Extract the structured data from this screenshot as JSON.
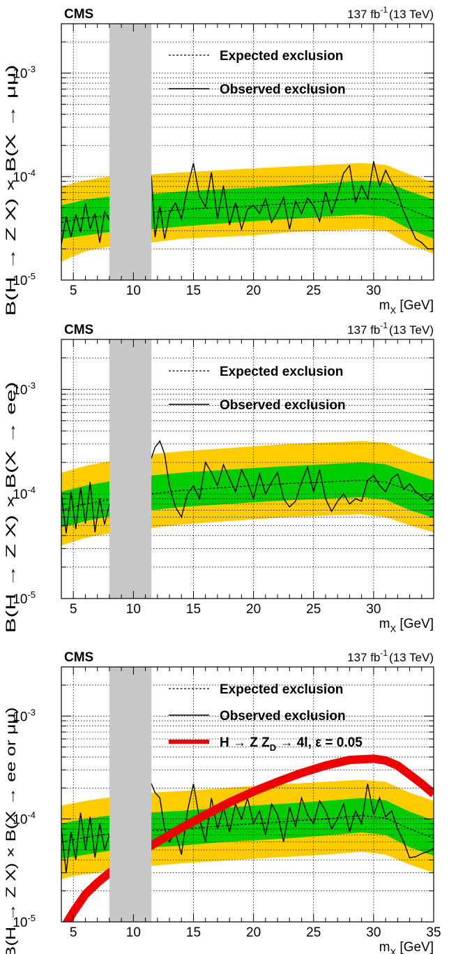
{
  "chart_data": [
    {
      "type": "line",
      "experiment": "CMS",
      "lumi": {
        "value": "137 fb",
        "exp": "-1",
        "energy": "(13 TeV)"
      },
      "xlabel": {
        "main": "m",
        "sub": "X",
        "unit": " [GeV]"
      },
      "ylabel": "B(H → Z X) × B(X → μμ)",
      "xlim": [
        4,
        35
      ],
      "ylim": [
        1e-05,
        0.003
      ],
      "log_y": true,
      "grid": true,
      "x_ticks": [
        5,
        10,
        15,
        20,
        25,
        30
      ],
      "y_ticks": [
        {
          "value": 1e-05,
          "exp": "-5"
        },
        {
          "value": 0.0001,
          "exp": "-4"
        },
        {
          "value": 0.001,
          "exp": "-3"
        }
      ],
      "excluded_region": [
        8,
        11.5
      ],
      "legend": {
        "expected": "Expected exclusion",
        "observed": "Observed exclusion"
      },
      "expected": {
        "x": [
          4,
          5,
          6,
          7,
          8,
          11.5,
          14,
          17,
          20,
          23,
          26,
          29,
          31,
          33,
          35
        ],
        "median": [
          3.6e-05,
          3.8e-05,
          4e-05,
          4.1e-05,
          4.2e-05,
          4.5e-05,
          4.8e-05,
          5e-05,
          5.2e-05,
          5.5e-05,
          5.8e-05,
          6.2e-05,
          6e-05,
          4.8e-05,
          3.9e-05
        ],
        "band1_low": [
          2.5e-05,
          2.6e-05,
          2.7e-05,
          2.8e-05,
          2.9e-05,
          3.1e-05,
          3.3e-05,
          3.5e-05,
          3.7e-05,
          3.9e-05,
          4.1e-05,
          4.3e-05,
          4.1e-05,
          3.1e-05,
          2.5e-05
        ],
        "band1_high": [
          5.3e-05,
          5.6e-05,
          6e-05,
          6.2e-05,
          6.4e-05,
          6.8e-05,
          7.2e-05,
          7.5e-05,
          7.8e-05,
          8.2e-05,
          8.6e-05,
          9.1e-05,
          8.8e-05,
          7.2e-05,
          6e-05
        ],
        "band2_low": [
          1.5e-05,
          1.7e-05,
          1.9e-05,
          2e-05,
          2.1e-05,
          2.3e-05,
          2.5e-05,
          2.6e-05,
          2.7e-05,
          2.9e-05,
          3e-05,
          3.1e-05,
          3e-05,
          2.2e-05,
          1.8e-05
        ],
        "band2_high": [
          8e-05,
          8.6e-05,
          9.2e-05,
          9.6e-05,
          0.0001,
          0.000105,
          0.00011,
          0.000115,
          0.00012,
          0.000125,
          0.00013,
          0.000135,
          0.00013,
          0.000105,
          8.8e-05
        ]
      },
      "observed": {
        "x": [
          4.0,
          4.4,
          4.8,
          5.2,
          5.6,
          6.0,
          6.4,
          6.8,
          7.2,
          7.6,
          8.0,
          11.5,
          11.8,
          12.2,
          12.6,
          13.0,
          13.5,
          14.0,
          14.5,
          15.0,
          15.5,
          16.0,
          16.5,
          17.0,
          17.5,
          18.0,
          18.5,
          19.0,
          19.5,
          20.0,
          20.5,
          21.0,
          21.5,
          22.0,
          22.5,
          23.0,
          23.5,
          24.0,
          24.5,
          25.0,
          25.5,
          26.0,
          26.5,
          27.0,
          27.5,
          28.0,
          28.5,
          29.0,
          29.5,
          30.0,
          30.5,
          31.0,
          31.5,
          32.0,
          32.5,
          33.0,
          33.5,
          34.0,
          34.5,
          35.0
        ],
        "y": [
          2.2e-05,
          4.1e-05,
          2.6e-05,
          4.3e-05,
          2.9e-05,
          5.5e-05,
          3.1e-05,
          4.4e-05,
          2.3e-05,
          4.6e-05,
          3.8e-05,
          0.0001,
          2.6e-05,
          5.2e-05,
          2.5e-05,
          4.4e-05,
          5.6e-05,
          3.9e-05,
          7.8e-05,
          0.000135,
          6.5e-05,
          5.1e-05,
          0.00011,
          3.9e-05,
          8.2e-05,
          3.4e-05,
          5.6e-05,
          3.1e-05,
          4.8e-05,
          5.3e-05,
          4.4e-05,
          6.1e-05,
          3.6e-05,
          4.6e-05,
          6.3e-05,
          3.1e-05,
          5.8e-05,
          4.4e-05,
          6.2e-05,
          5.2e-05,
          3.7e-05,
          7.1e-05,
          4.4e-05,
          6.6e-05,
          0.000108,
          0.000128,
          5.6e-05,
          8.2e-05,
          6.1e-05,
          0.00014,
          8.1e-05,
          0.000115,
          8.8e-05,
          6.9e-05,
          4.6e-05,
          3.4e-05,
          2.5e-05,
          2.3e-05,
          2e-05,
          2e-05
        ]
      }
    },
    {
      "type": "line",
      "experiment": "CMS",
      "lumi": {
        "value": "137 fb",
        "exp": "-1",
        "energy": "(13 TeV)"
      },
      "xlabel": {
        "main": "m",
        "sub": "X",
        "unit": " [GeV]"
      },
      "ylabel": "B(H → Z X) × B(X → ee)",
      "xlim": [
        4,
        35
      ],
      "ylim": [
        1e-05,
        0.003
      ],
      "log_y": true,
      "grid": true,
      "x_ticks": [
        5,
        10,
        15,
        20,
        25,
        30
      ],
      "y_ticks": [
        {
          "value": 1e-05,
          "exp": "-5"
        },
        {
          "value": 0.0001,
          "exp": "-4"
        },
        {
          "value": 0.001,
          "exp": "-3"
        }
      ],
      "excluded_region": [
        8,
        11.5
      ],
      "legend": {
        "expected": "Expected exclusion",
        "observed": "Observed exclusion"
      },
      "expected": {
        "x": [
          4,
          5,
          6,
          7,
          8,
          11.5,
          14,
          17,
          20,
          23,
          26,
          29,
          31,
          33,
          35
        ],
        "median": [
          7e-05,
          7.5e-05,
          8e-05,
          8.4e-05,
          8.8e-05,
          0.0001,
          0.000108,
          0.000114,
          0.00012,
          0.000126,
          0.00013,
          0.000135,
          0.00013,
          0.000108,
          9e-05
        ],
        "band1_low": [
          4.8e-05,
          5.1e-05,
          5.5e-05,
          5.8e-05,
          6.1e-05,
          7e-05,
          7.5e-05,
          7.9e-05,
          8.3e-05,
          8.7e-05,
          9e-05,
          9.3e-05,
          8.8e-05,
          7e-05,
          5.9e-05
        ],
        "band1_high": [
          0.000105,
          0.000112,
          0.00012,
          0.000126,
          0.000132,
          0.00015,
          0.00016,
          0.000168,
          0.000177,
          0.000185,
          0.000192,
          0.0002,
          0.000192,
          0.00016,
          0.000135
        ],
        "band2_low": [
          3.2e-05,
          3.5e-05,
          3.8e-05,
          4e-05,
          4.2e-05,
          4.7e-05,
          5.1e-05,
          5.4e-05,
          5.7e-05,
          6e-05,
          6.2e-05,
          6.4e-05,
          6e-05,
          5e-05,
          4.3e-05
        ],
        "band2_high": [
          0.00016,
          0.000172,
          0.000185,
          0.000195,
          0.000205,
          0.00024,
          0.000255,
          0.00027,
          0.000285,
          0.0003,
          0.00031,
          0.00032,
          0.00031,
          0.00025,
          0.00021
        ]
      },
      "observed": {
        "x": [
          4.0,
          4.4,
          4.8,
          5.2,
          5.6,
          6.0,
          6.4,
          6.8,
          7.2,
          7.6,
          8.0,
          11.5,
          11.8,
          12.2,
          12.6,
          13.0,
          13.5,
          14.0,
          14.5,
          15.0,
          15.5,
          16.0,
          16.5,
          17.0,
          17.5,
          18.0,
          18.5,
          19.0,
          19.5,
          20.0,
          20.5,
          21.0,
          21.5,
          22.0,
          22.5,
          23.0,
          23.5,
          24.0,
          24.5,
          25.0,
          25.5,
          26.0,
          26.5,
          27.0,
          27.5,
          28.0,
          28.5,
          29.0,
          29.5,
          30.0,
          30.5,
          31.0,
          31.5,
          32.0,
          32.5,
          33.0,
          33.5,
          34.0,
          34.5,
          35.0
        ],
        "y": [
          0.0001,
          4.2e-05,
          0.000105,
          4.6e-05,
          0.000115,
          5.2e-05,
          0.00013,
          4.3e-05,
          9e-05,
          5.1e-05,
          8e-05,
          0.00022,
          0.00028,
          0.00032,
          0.00024,
          0.00012,
          7.5e-05,
          6e-05,
          0.0001,
          0.00012,
          9e-05,
          0.0002,
          0.00016,
          0.00012,
          0.00019,
          0.00014,
          0.000105,
          0.00017,
          0.00013,
          9e-05,
          0.000155,
          0.0001,
          0.00013,
          0.00016,
          9e-05,
          7.5e-05,
          8.5e-05,
          0.00013,
          0.00018,
          0.000105,
          0.00017,
          9e-05,
          6.8e-05,
          8.5e-05,
          0.0001,
          8e-05,
          9e-05,
          8.5e-05,
          0.000135,
          0.00015,
          0.00012,
          0.000105,
          0.00014,
          0.000155,
          0.00011,
          0.000125,
          0.000105,
          9.5e-05,
          8.5e-05,
          0.0001
        ]
      }
    },
    {
      "type": "line",
      "experiment": "CMS",
      "lumi": {
        "value": "137 fb",
        "exp": "-1",
        "energy": "(13 TeV)"
      },
      "xlabel": {
        "main": "m",
        "sub": "X",
        "unit": " [GeV]"
      },
      "ylabel": "B(H → Z X) × B(X → ee or μμ)",
      "xlim": [
        4,
        35
      ],
      "ylim": [
        1e-05,
        0.003
      ],
      "log_y": true,
      "grid": true,
      "x_ticks": [
        5,
        10,
        15,
        20,
        25,
        30,
        35
      ],
      "y_ticks": [
        {
          "value": 1e-05,
          "exp": "-5"
        },
        {
          "value": 0.0001,
          "exp": "-4"
        },
        {
          "value": 0.001,
          "exp": "-3"
        }
      ],
      "excluded_region": [
        8,
        11.5
      ],
      "legend": {
        "expected": "Expected exclusion",
        "observed": "Observed exclusion",
        "model_main": "H → Z Z",
        "model_sub": "D",
        "model_tail": " → 4l, ε = 0.05"
      },
      "expected": {
        "x": [
          4,
          5,
          6,
          7,
          8,
          11.5,
          14,
          17,
          20,
          23,
          26,
          29,
          31,
          33,
          35
        ],
        "median": [
          6e-05,
          6.3e-05,
          6.6e-05,
          6.9e-05,
          7.2e-05,
          7.7e-05,
          8e-05,
          8.5e-05,
          9e-05,
          9.5e-05,
          0.0001,
          0.000108,
          0.000102,
          8e-05,
          6.5e-05
        ],
        "band1_low": [
          4.1e-05,
          4.3e-05,
          4.5e-05,
          4.7e-05,
          4.9e-05,
          5.3e-05,
          5.5e-05,
          5.9e-05,
          6.2e-05,
          6.5e-05,
          6.9e-05,
          7.4e-05,
          7e-05,
          5.3e-05,
          4.4e-05
        ],
        "band1_high": [
          9e-05,
          9.5e-05,
          0.0001,
          0.000104,
          0.000108,
          0.000116,
          0.00012,
          0.000127,
          0.000135,
          0.000142,
          0.00015,
          0.00016,
          0.000152,
          0.000118,
          9.7e-05
        ],
        "band2_low": [
          2.6e-05,
          2.8e-05,
          2.9e-05,
          3e-05,
          3.2e-05,
          3.5e-05,
          3.7e-05,
          3.9e-05,
          4.1e-05,
          4.3e-05,
          4.5e-05,
          4.8e-05,
          4.5e-05,
          3.6e-05,
          3e-05
        ],
        "band2_high": [
          0.000135,
          0.000142,
          0.00015,
          0.000156,
          0.000162,
          0.00018,
          0.000187,
          0.000197,
          0.00021,
          0.00022,
          0.00023,
          0.00024,
          0.00023,
          0.00018,
          0.00015
        ]
      },
      "observed": {
        "x": [
          4.0,
          4.4,
          4.8,
          5.2,
          5.6,
          6.0,
          6.4,
          6.8,
          7.2,
          7.6,
          8.0,
          11.5,
          11.8,
          12.2,
          12.6,
          13.0,
          13.5,
          14.0,
          14.5,
          15.0,
          15.5,
          16.0,
          16.5,
          17.0,
          17.5,
          18.0,
          18.5,
          19.0,
          19.5,
          20.0,
          20.5,
          21.0,
          21.5,
          22.0,
          22.5,
          23.0,
          23.5,
          24.0,
          24.5,
          25.0,
          25.5,
          26.0,
          26.5,
          27.0,
          27.5,
          28.0,
          28.5,
          29.0,
          29.5,
          30.0,
          30.5,
          31.0,
          31.5,
          32.0,
          32.5,
          33.0,
          33.5,
          34.0,
          34.5,
          35.0
        ],
        "y": [
          8e-05,
          3e-05,
          7.5e-05,
          4e-05,
          0.000115,
          5e-05,
          0.000105,
          4.2e-05,
          9e-05,
          5e-05,
          7e-05,
          0.00022,
          0.00018,
          0.00016,
          8e-05,
          6e-05,
          7.5e-05,
          4.5e-05,
          0.00012,
          0.00022,
          0.0001,
          6e-05,
          0.00016,
          8e-05,
          0.00013,
          7.5e-05,
          0.00014,
          0.0001,
          0.00016,
          9e-05,
          0.00012,
          7e-05,
          0.00014,
          0.00011,
          6e-05,
          0.00013,
          8.5e-05,
          0.00016,
          0.00011,
          9e-05,
          0.00015,
          0.00012,
          8e-05,
          0.0001,
          0.00014,
          7.5e-05,
          0.00012,
          9e-05,
          0.00022,
          0.00011,
          0.00016,
          0.000105,
          0.00012,
          8e-05,
          6e-05,
          4.2e-05,
          4.3e-05,
          4.6e-05,
          4.8e-05,
          5.2e-05
        ]
      },
      "model": {
        "x": [
          4,
          5,
          6,
          7,
          8,
          10,
          12,
          14,
          16,
          18,
          20,
          22,
          24,
          26,
          28,
          30,
          31,
          32,
          33,
          34,
          35
        ],
        "y": [
          8e-06,
          1.25e-05,
          1.85e-05,
          2.4e-05,
          3e-05,
          4.3e-05,
          6e-05,
          8.2e-05,
          0.00011,
          0.000145,
          0.000185,
          0.00023,
          0.00028,
          0.00033,
          0.000375,
          0.000385,
          0.00037,
          0.00033,
          0.00027,
          0.00022,
          0.000175
        ]
      }
    }
  ]
}
